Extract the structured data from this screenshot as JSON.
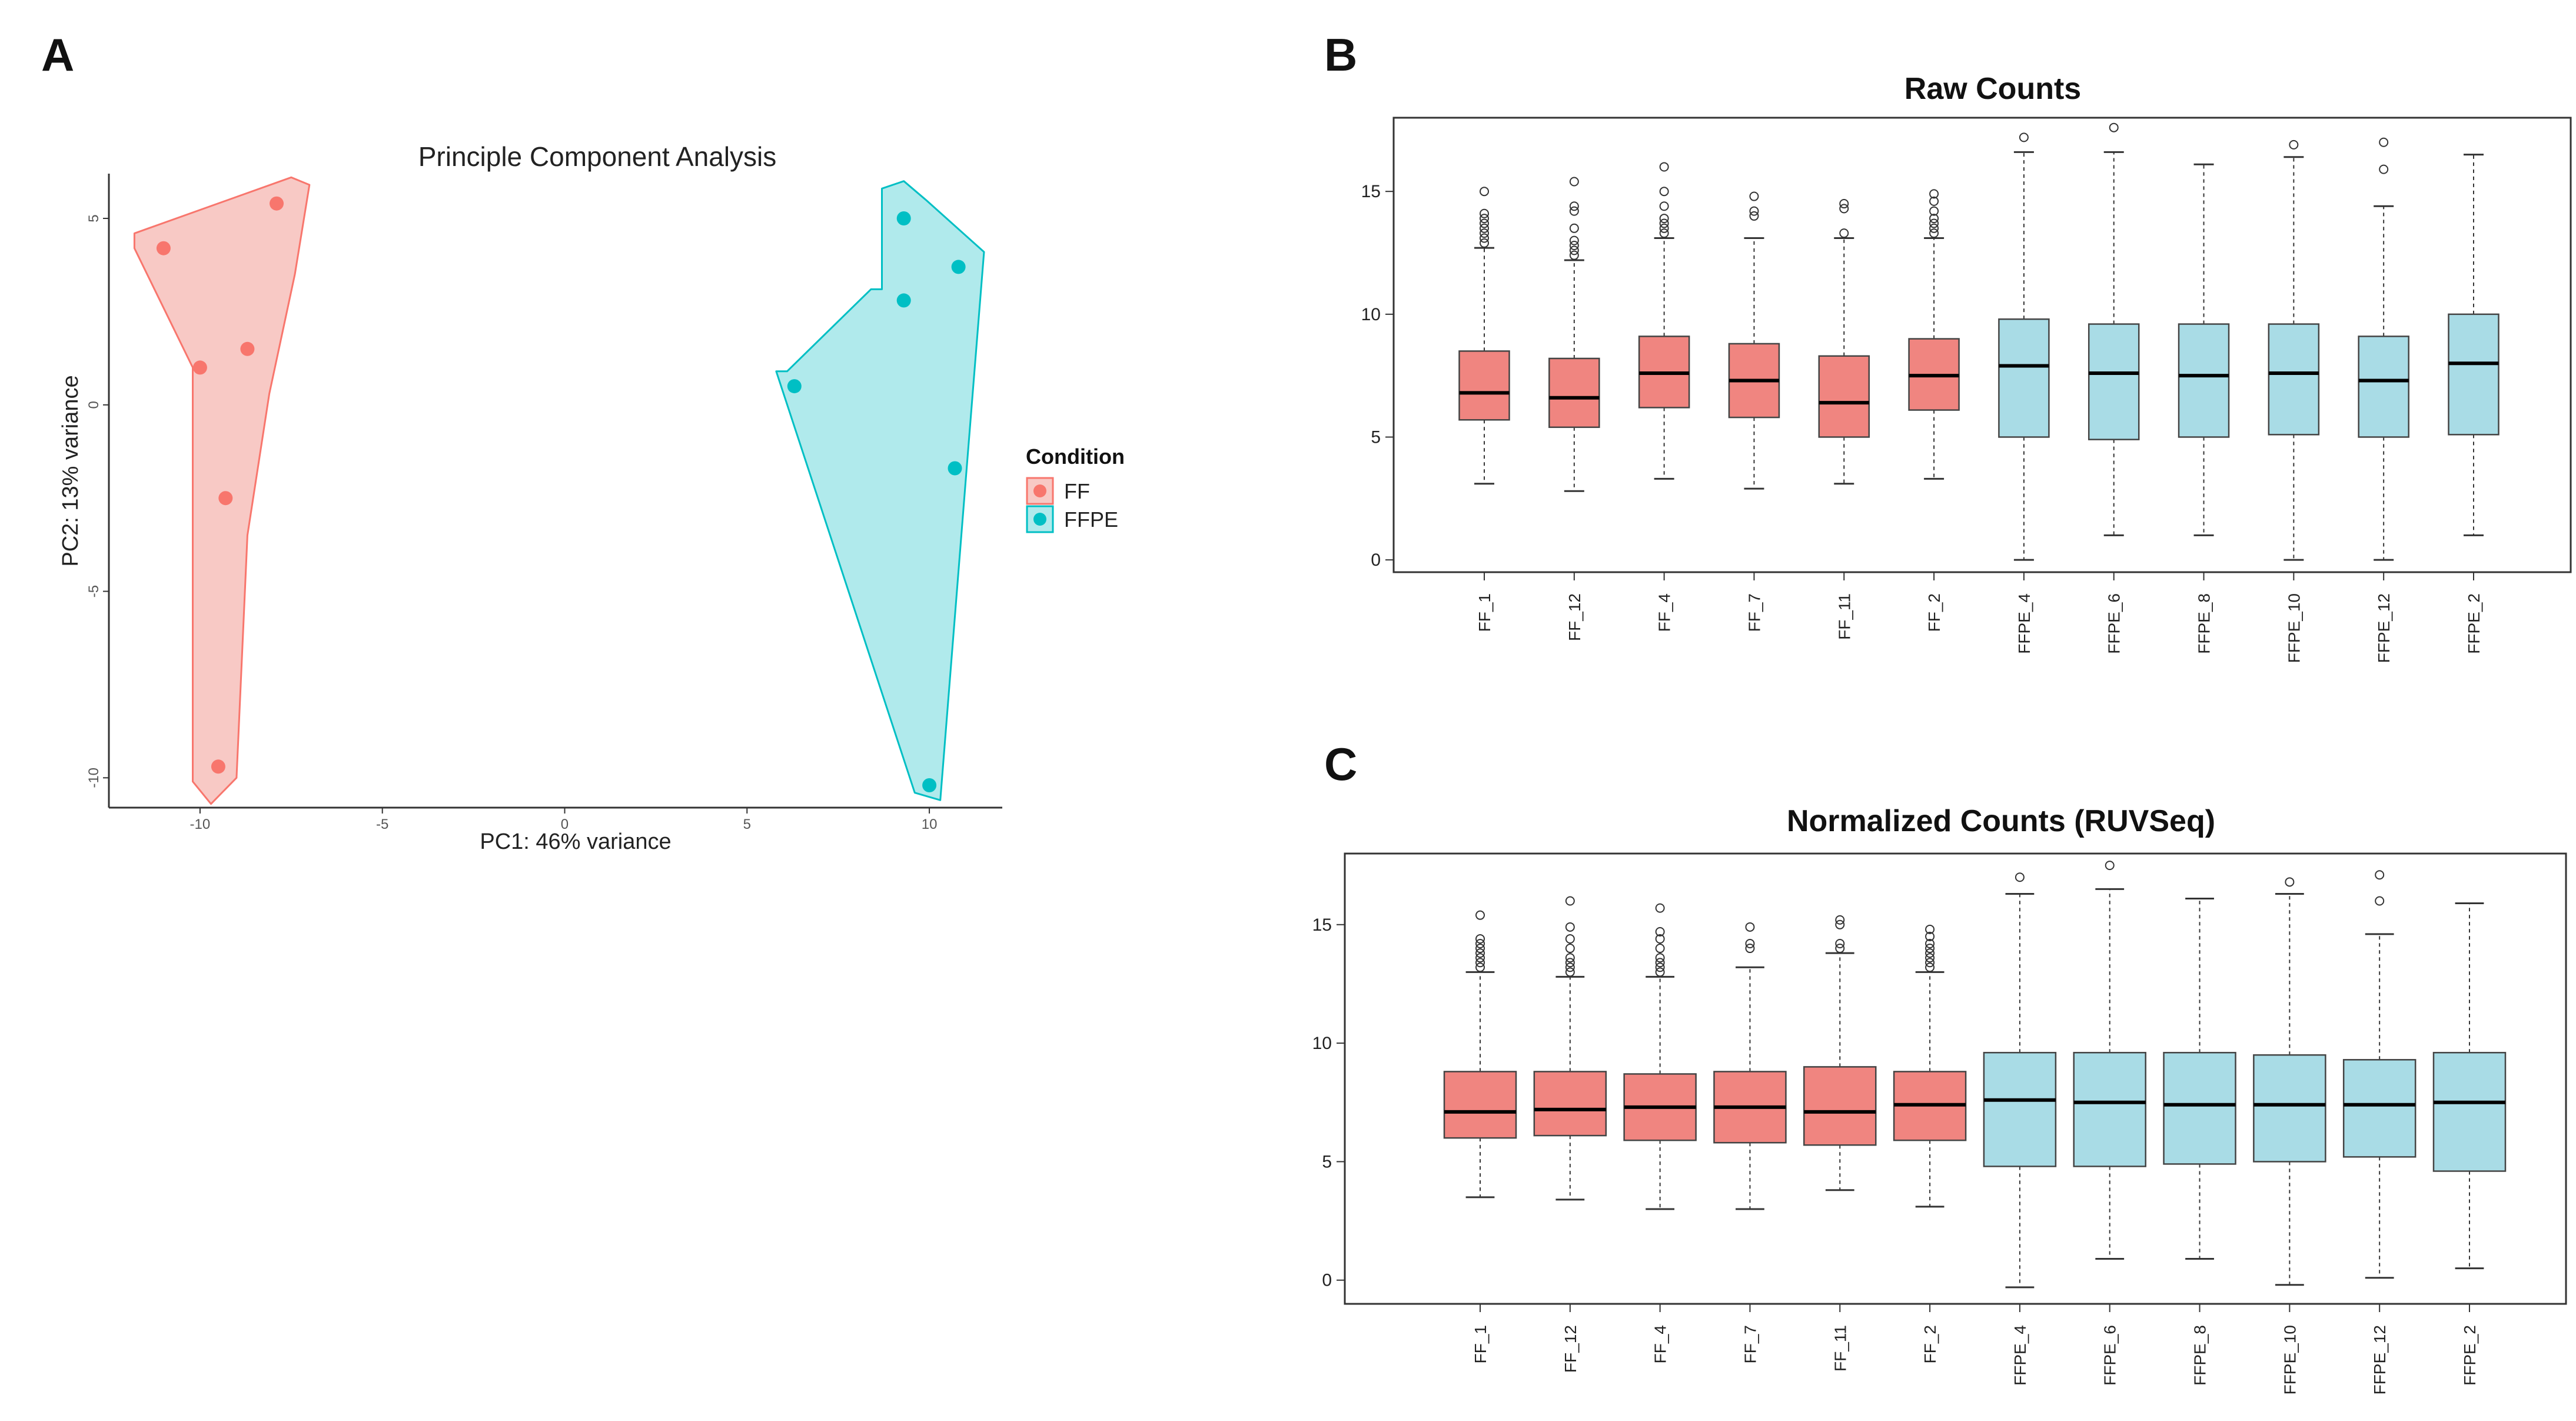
{
  "colors": {
    "ff_point": "#f8766d",
    "ff_hull_fill": "#f8c9c5",
    "ffpe_point": "#00bfc4",
    "ffpe_hull_fill": "#b0eaec",
    "ff_box": "#f08580",
    "ffpe_box": "#a9dce6",
    "box_stroke": "#444444",
    "median": "#000000",
    "frame": "#333333"
  },
  "chart_data": [
    {
      "id": "A",
      "type": "scatter",
      "panel_label": "A",
      "title": "Principle Component Analysis",
      "xlabel": "PC1: 46% variance",
      "ylabel": "PC2: 13% variance",
      "xlim": [
        -12.5,
        12
      ],
      "ylim": [
        -10.8,
        6.2
      ],
      "xticks": [
        -10,
        -5,
        0,
        5,
        10
      ],
      "yticks": [
        -10,
        -5,
        0,
        5
      ],
      "legend": {
        "title": "Condition",
        "placement": "right",
        "entries": [
          {
            "label": "FF",
            "group": "FF"
          },
          {
            "label": "FFPE",
            "group": "FFPE"
          }
        ]
      },
      "series": [
        {
          "name": "FF",
          "points": [
            {
              "x": -11.0,
              "y": 4.2
            },
            {
              "x": -7.9,
              "y": 5.4
            },
            {
              "x": -10.0,
              "y": 1.0
            },
            {
              "x": -8.7,
              "y": 1.5
            },
            {
              "x": -9.3,
              "y": -2.5
            },
            {
              "x": -9.5,
              "y": -9.7
            }
          ],
          "hull": [
            [
              -11.8,
              4.6
            ],
            [
              -7.5,
              6.1
            ],
            [
              -7.0,
              5.9
            ],
            [
              -7.4,
              3.5
            ],
            [
              -8.1,
              0.3
            ],
            [
              -8.7,
              -3.5
            ],
            [
              -9.0,
              -10.0
            ],
            [
              -9.7,
              -10.7
            ],
            [
              -10.2,
              -10.1
            ],
            [
              -10.2,
              1.0
            ],
            [
              -11.8,
              4.2
            ]
          ]
        },
        {
          "name": "FFPE",
          "points": [
            {
              "x": 9.3,
              "y": 5.0
            },
            {
              "x": 10.8,
              "y": 3.7
            },
            {
              "x": 9.3,
              "y": 2.8
            },
            {
              "x": 6.3,
              "y": 0.5
            },
            {
              "x": 10.7,
              "y": -1.7
            },
            {
              "x": 10.0,
              "y": -10.2
            }
          ],
          "hull": [
            [
              8.7,
              5.8
            ],
            [
              9.3,
              6.0
            ],
            [
              9.9,
              5.5
            ],
            [
              11.5,
              4.1
            ],
            [
              11.0,
              -2.0
            ],
            [
              10.3,
              -10.6
            ],
            [
              9.6,
              -10.4
            ],
            [
              5.8,
              0.9
            ],
            [
              6.1,
              0.9
            ],
            [
              8.4,
              3.1
            ],
            [
              8.7,
              3.1
            ]
          ]
        }
      ]
    },
    {
      "id": "B",
      "type": "box",
      "panel_label": "B",
      "title": "Raw Counts",
      "ylim": [
        -0.5,
        18
      ],
      "yticks": [
        0,
        5,
        10,
        15
      ],
      "categories": [
        "FF_1",
        "FF_12",
        "FF_4",
        "FF_7",
        "FF_11",
        "FF_2",
        "FFPE_4",
        "FFPE_6",
        "FFPE_8",
        "FFPE_10",
        "FFPE_12",
        "FFPE_2"
      ],
      "groups": [
        "FF",
        "FF",
        "FF",
        "FF",
        "FF",
        "FF",
        "FFPE",
        "FFPE",
        "FFPE",
        "FFPE",
        "FFPE",
        "FFPE"
      ],
      "boxes": [
        {
          "whisker_low": 3.1,
          "q1": 5.7,
          "median": 6.8,
          "q3": 8.5,
          "whisker_high": 12.7,
          "outliers": [
            12.9,
            13.1,
            13.3,
            13.5,
            13.7,
            13.9,
            14.1,
            15.0
          ]
        },
        {
          "whisker_low": 2.8,
          "q1": 5.4,
          "median": 6.6,
          "q3": 8.2,
          "whisker_high": 12.2,
          "outliers": [
            12.4,
            12.6,
            12.8,
            13.0,
            13.5,
            14.2,
            14.4,
            15.4
          ]
        },
        {
          "whisker_low": 3.3,
          "q1": 6.2,
          "median": 7.6,
          "q3": 9.1,
          "whisker_high": 13.1,
          "outliers": [
            13.3,
            13.5,
            13.7,
            13.9,
            14.4,
            15.0,
            16.0
          ]
        },
        {
          "whisker_low": 2.9,
          "q1": 5.8,
          "median": 7.3,
          "q3": 8.8,
          "whisker_high": 13.1,
          "outliers": [
            14.0,
            14.2,
            14.8
          ]
        },
        {
          "whisker_low": 3.1,
          "q1": 5.0,
          "median": 6.4,
          "q3": 8.3,
          "whisker_high": 13.1,
          "outliers": [
            13.3,
            14.3,
            14.5
          ]
        },
        {
          "whisker_low": 3.3,
          "q1": 6.1,
          "median": 7.5,
          "q3": 9.0,
          "whisker_high": 13.1,
          "outliers": [
            13.3,
            13.5,
            13.7,
            13.9,
            14.2,
            14.6,
            14.9
          ]
        },
        {
          "whisker_low": 0.0,
          "q1": 5.0,
          "median": 7.9,
          "q3": 9.8,
          "whisker_high": 16.6,
          "outliers": [
            17.2
          ]
        },
        {
          "whisker_low": 1.0,
          "q1": 4.9,
          "median": 7.6,
          "q3": 9.6,
          "whisker_high": 16.6,
          "outliers": [
            17.6
          ]
        },
        {
          "whisker_low": 1.0,
          "q1": 5.0,
          "median": 7.5,
          "q3": 9.6,
          "whisker_high": 16.1,
          "outliers": []
        },
        {
          "whisker_low": 0.0,
          "q1": 5.1,
          "median": 7.6,
          "q3": 9.6,
          "whisker_high": 16.4,
          "outliers": [
            16.9
          ]
        },
        {
          "whisker_low": 0.0,
          "q1": 5.0,
          "median": 7.3,
          "q3": 9.1,
          "whisker_high": 14.4,
          "outliers": [
            15.9,
            17.0
          ]
        },
        {
          "whisker_low": 1.0,
          "q1": 5.1,
          "median": 8.0,
          "q3": 10.0,
          "whisker_high": 16.5,
          "outliers": []
        }
      ]
    },
    {
      "id": "C",
      "type": "box",
      "panel_label": "C",
      "title": "Normalized Counts (RUVSeq)",
      "ylim": [
        -1,
        18
      ],
      "yticks": [
        0,
        5,
        10,
        15
      ],
      "categories": [
        "FF_1",
        "FF_12",
        "FF_4",
        "FF_7",
        "FF_11",
        "FF_2",
        "FFPE_4",
        "FFPE_6",
        "FFPE_8",
        "FFPE_10",
        "FFPE_12",
        "FFPE_2"
      ],
      "groups": [
        "FF",
        "FF",
        "FF",
        "FF",
        "FF",
        "FF",
        "FFPE",
        "FFPE",
        "FFPE",
        "FFPE",
        "FFPE",
        "FFPE"
      ],
      "boxes": [
        {
          "whisker_low": 3.5,
          "q1": 6.0,
          "median": 7.1,
          "q3": 8.8,
          "whisker_high": 13.0,
          "outliers": [
            13.2,
            13.4,
            13.6,
            13.8,
            14.0,
            14.2,
            14.4,
            15.4
          ]
        },
        {
          "whisker_low": 3.4,
          "q1": 6.1,
          "median": 7.2,
          "q3": 8.8,
          "whisker_high": 12.8,
          "outliers": [
            13.0,
            13.2,
            13.4,
            13.6,
            14.0,
            14.4,
            14.9,
            16.0
          ]
        },
        {
          "whisker_low": 3.0,
          "q1": 5.9,
          "median": 7.3,
          "q3": 8.7,
          "whisker_high": 12.8,
          "outliers": [
            13.0,
            13.2,
            13.4,
            13.6,
            14.0,
            14.4,
            14.7,
            15.7
          ]
        },
        {
          "whisker_low": 3.0,
          "q1": 5.8,
          "median": 7.3,
          "q3": 8.8,
          "whisker_high": 13.2,
          "outliers": [
            14.0,
            14.2,
            14.9
          ]
        },
        {
          "whisker_low": 3.8,
          "q1": 5.7,
          "median": 7.1,
          "q3": 9.0,
          "whisker_high": 13.8,
          "outliers": [
            14.0,
            14.2,
            15.0,
            15.2
          ]
        },
        {
          "whisker_low": 3.1,
          "q1": 5.9,
          "median": 7.4,
          "q3": 8.8,
          "whisker_high": 13.0,
          "outliers": [
            13.2,
            13.4,
            13.6,
            13.8,
            14.0,
            14.2,
            14.5,
            14.8
          ]
        },
        {
          "whisker_low": -0.3,
          "q1": 4.8,
          "median": 7.6,
          "q3": 9.6,
          "whisker_high": 16.3,
          "outliers": [
            17.0
          ]
        },
        {
          "whisker_low": 0.9,
          "q1": 4.8,
          "median": 7.5,
          "q3": 9.6,
          "whisker_high": 16.5,
          "outliers": [
            17.5
          ]
        },
        {
          "whisker_low": 0.9,
          "q1": 4.9,
          "median": 7.4,
          "q3": 9.6,
          "whisker_high": 16.1,
          "outliers": []
        },
        {
          "whisker_low": -0.2,
          "q1": 5.0,
          "median": 7.4,
          "q3": 9.5,
          "whisker_high": 16.3,
          "outliers": [
            16.8
          ]
        },
        {
          "whisker_low": 0.1,
          "q1": 5.2,
          "median": 7.4,
          "q3": 9.3,
          "whisker_high": 14.6,
          "outliers": [
            16.0,
            17.1
          ]
        },
        {
          "whisker_low": 0.5,
          "q1": 4.6,
          "median": 7.5,
          "q3": 9.6,
          "whisker_high": 15.9,
          "outliers": []
        }
      ]
    }
  ]
}
